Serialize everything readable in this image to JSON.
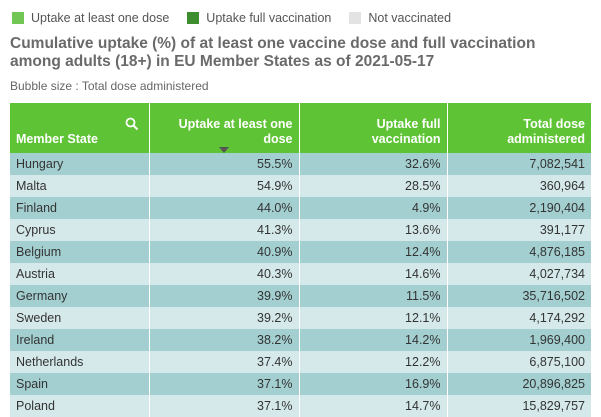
{
  "legend": [
    {
      "label": "Uptake at least one dose",
      "color": "#72c653"
    },
    {
      "label": "Uptake full vaccination",
      "color": "#3e8e2f"
    },
    {
      "label": "Not vaccinated",
      "color": "#e3e3e3"
    }
  ],
  "title": "Cumulative uptake (%) of at least one vaccine dose and full vaccination among adults (18+) in EU Member States as of 2021-05-17",
  "subtitle": "Bubble size : Total dose administered",
  "table": {
    "columns": [
      "Member State",
      "Uptake at least one dose",
      "Uptake full vaccination",
      "Total dose administered"
    ],
    "rows": [
      [
        "Hungary",
        "55.5%",
        "32.6%",
        "7,082,541"
      ],
      [
        "Malta",
        "54.9%",
        "28.5%",
        "360,964"
      ],
      [
        "Finland",
        "44.0%",
        "4.9%",
        "2,190,404"
      ],
      [
        "Cyprus",
        "41.3%",
        "13.6%",
        "391,177"
      ],
      [
        "Belgium",
        "40.9%",
        "12.4%",
        "4,876,185"
      ],
      [
        "Austria",
        "40.3%",
        "14.6%",
        "4,027,734"
      ],
      [
        "Germany",
        "39.9%",
        "11.5%",
        "35,716,502"
      ],
      [
        "Sweden",
        "39.2%",
        "12.1%",
        "4,174,292"
      ],
      [
        "Ireland",
        "38.2%",
        "14.2%",
        "1,969,400"
      ],
      [
        "Netherlands",
        "37.4%",
        "12.2%",
        "6,875,100"
      ],
      [
        "Spain",
        "37.1%",
        "16.9%",
        "20,896,825"
      ],
      [
        "Poland",
        "37.1%",
        "14.7%",
        "15,829,757"
      ]
    ]
  },
  "colors": {
    "header": "#5ec435",
    "row_odd": "#a4cfd0",
    "row_even": "#d5e9ea"
  },
  "icons": {
    "search": "search-icon",
    "sort": "sort-descending-icon"
  }
}
